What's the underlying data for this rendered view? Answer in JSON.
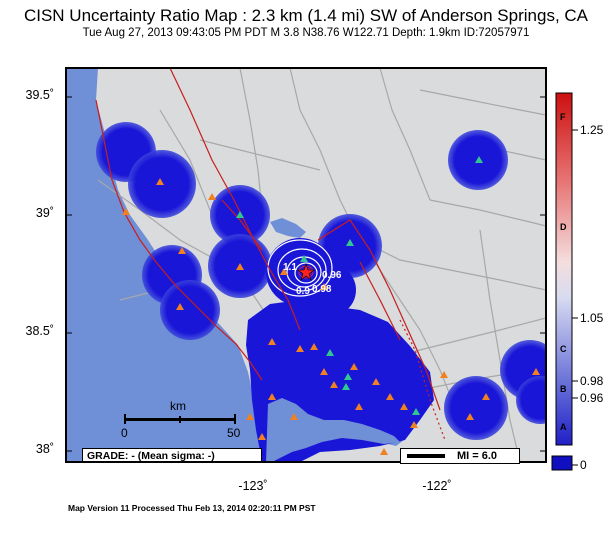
{
  "header": {
    "title": "CISN Uncertainty Ratio Map : 2.3 km (1.4 mi) SW of Anderson Springs, CA",
    "subtitle": "Tue Aug 27, 2013 09:43:05 PM PDT   M 3.8   N38.76 W122.71   Depth: 1.9km   ID:72057971"
  },
  "axes": {
    "lat_labels": [
      "39.5˚",
      "39˚",
      "38.5˚",
      "38˚"
    ],
    "lon_labels": [
      "-123˚",
      "-122˚"
    ]
  },
  "scale_bar": {
    "unit": "km",
    "min": "0",
    "max": "50"
  },
  "grade_box": {
    "text": "GRADE: - (Mean sigma: -)"
  },
  "mi_legend": {
    "text": "MI = 6.0"
  },
  "colorbar": {
    "ticks": [
      "1.25",
      "1.05",
      "0.98",
      "0.96",
      "0"
    ],
    "grades": [
      "F",
      "D",
      "C",
      "B",
      "A"
    ]
  },
  "contour_labels": [
    "1.1",
    "0.9",
    "0.98",
    "0.96"
  ],
  "footer": {
    "text": "Map Version 11 Processed Thu Feb 13, 2014 02:20:11 PM PST"
  },
  "colors": {
    "ocean": "#6f8fd6",
    "land": "#d9dbdd",
    "coverage": "#1a16d8",
    "fault": "#c81e1e",
    "station_triangle": "#f08020",
    "station_green": "#30c890",
    "road": "#a8a8a8"
  }
}
